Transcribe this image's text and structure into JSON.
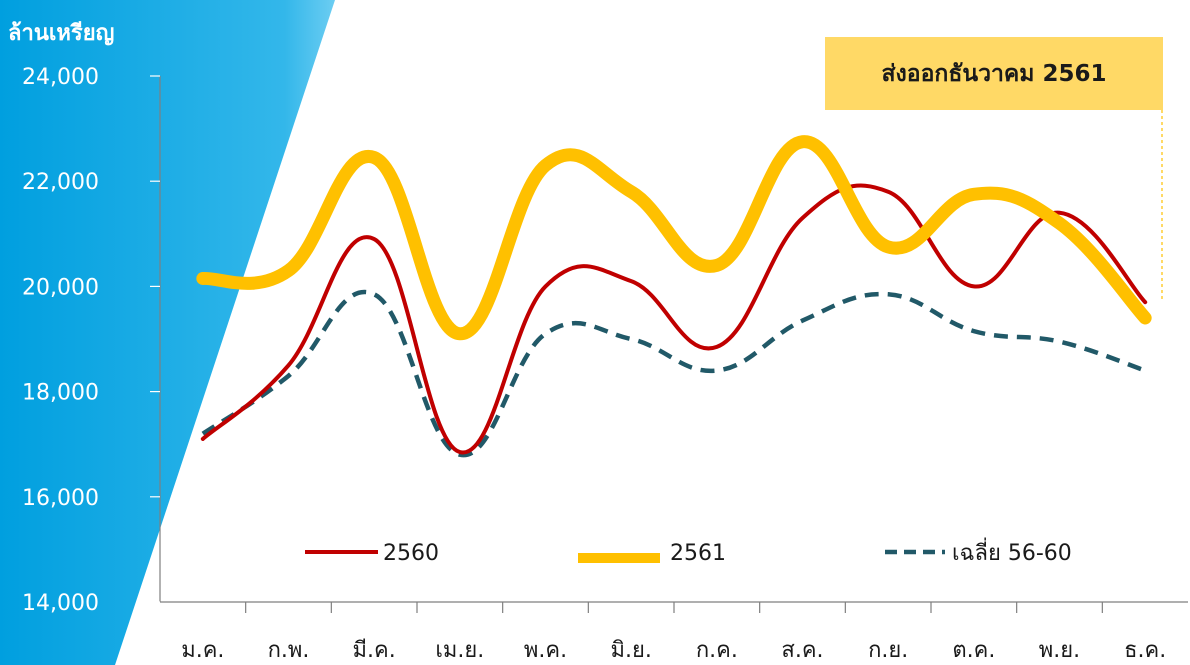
{
  "chart_data": {
    "type": "line",
    "title": "ส่งออกธันวาคม 2561",
    "ylabel": "ล้านเหรียญ",
    "xlabel": "",
    "categories": [
      "ม.ค.",
      "ก.พ.",
      "มี.ค.",
      "เม.ย.",
      "พ.ค.",
      "มิ.ย.",
      "ก.ค.",
      "ส.ค.",
      "ก.ย.",
      "ต.ค.",
      "พ.ย.",
      "ธ.ค."
    ],
    "ylim": [
      14000,
      24000
    ],
    "yticks": [
      "14,000",
      "16,000",
      "18,000",
      "20,000",
      "22,000",
      "24,000"
    ],
    "series": [
      {
        "name": "2560",
        "color": "#c00000",
        "style": "solid",
        "values": [
          17100,
          18500,
          20900,
          16850,
          20000,
          20100,
          18850,
          21300,
          21800,
          20000,
          21400,
          19700
        ]
      },
      {
        "name": "2561",
        "color": "#ffc000",
        "style": "thick",
        "values": [
          20150,
          20300,
          22450,
          19100,
          22300,
          21800,
          20400,
          22750,
          20750,
          21750,
          21200,
          19400
        ]
      },
      {
        "name": "เฉลี่ย 56-60",
        "color": "#215968",
        "style": "dashed",
        "values": [
          17200,
          18300,
          19850,
          16800,
          19100,
          19000,
          18400,
          19350,
          19850,
          19150,
          18950,
          18400
        ]
      }
    ],
    "legend_position": "bottom",
    "grid": false,
    "background_accent": "#0ba3dc"
  }
}
